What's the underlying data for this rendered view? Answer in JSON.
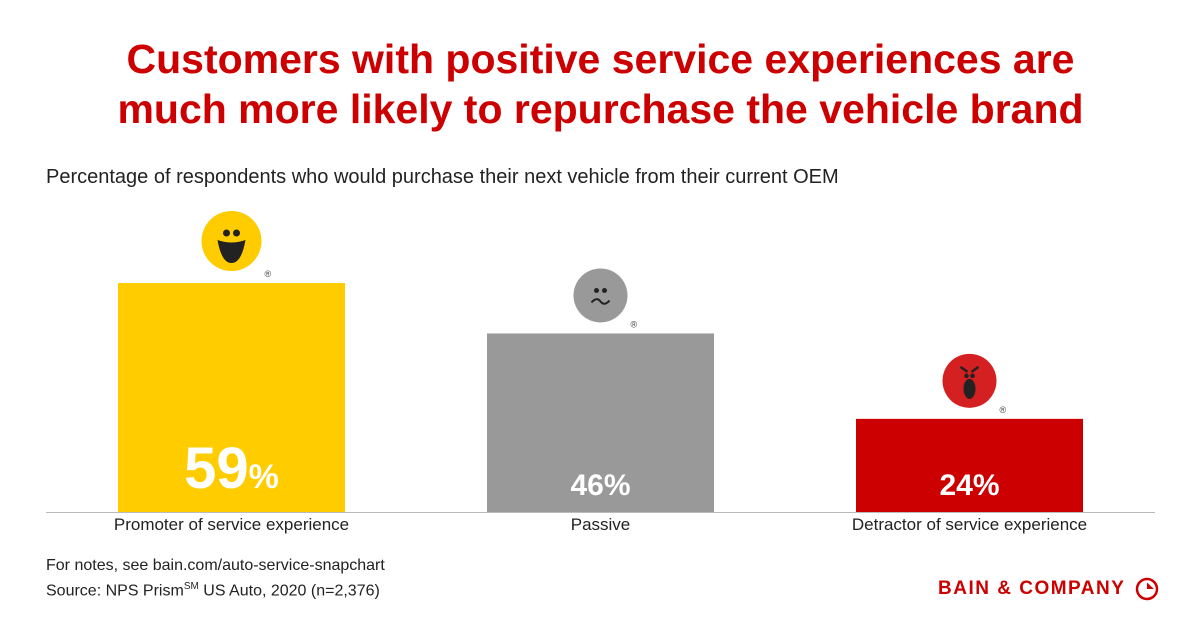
{
  "title_line1": "Customers with positive service experiences are",
  "title_line2": "much more likely to repurchase the vehicle brand",
  "subtitle": "Percentage of respondents who would purchase their next vehicle from their current OEM",
  "chart_data": {
    "type": "bar",
    "categories": [
      "Promoter of service experience",
      "Passive",
      "Detractor of service experience"
    ],
    "values": [
      59,
      46,
      24
    ],
    "data_labels": [
      "59%",
      "46%",
      "24%"
    ],
    "colors": [
      "#ffcc00",
      "#999999",
      "#cc0000"
    ],
    "icons": [
      "smiling-face-icon",
      "neutral-face-icon",
      "angry-face-icon"
    ],
    "icon_mark": "®",
    "ylim": [
      0,
      59
    ],
    "grid": false
  },
  "notes": {
    "line1": "For notes, see bain.com/auto-service-snapchart",
    "line2_prefix": "Source: NPS Prism",
    "line2_sup": "SM",
    "line2_suffix": " US Auto, 2020 (n=2,376)"
  },
  "logo": "BAIN & COMPANY"
}
